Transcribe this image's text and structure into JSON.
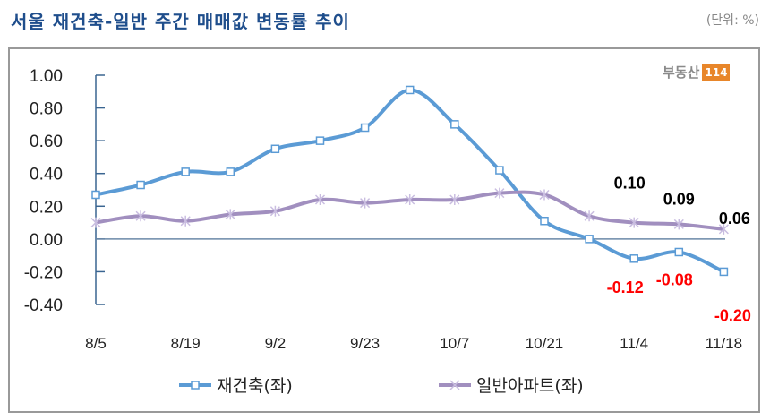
{
  "title": "서울 재건축-일반 주간 매매값 변동률 추이",
  "unit": "(단위: %)",
  "logo": {
    "text": "부동산",
    "badge": "114"
  },
  "chart_data": {
    "type": "line",
    "title": "서울 재건축-일반 주간 매매값 변동률 추이",
    "ylabel": "%",
    "ylim": [
      -0.4,
      1.0
    ],
    "yticks": [
      "1.00",
      "0.80",
      "0.60",
      "0.40",
      "0.20",
      "0.00",
      "-0.20",
      "-0.40"
    ],
    "ytick_values": [
      1.0,
      0.8,
      0.6,
      0.4,
      0.2,
      0.0,
      -0.2,
      -0.4
    ],
    "x_tick_labels": [
      "8/5",
      "8/19",
      "9/2",
      "9/23",
      "10/7",
      "10/21",
      "11/4",
      "11/18"
    ],
    "x_tick_indices": [
      0,
      2,
      4,
      6,
      8,
      10,
      12,
      14
    ],
    "point_count": 15,
    "legend_position": "bottom",
    "series": [
      {
        "name": "재건축(좌)",
        "color": "#5b9bd5",
        "marker": "square",
        "values": [
          0.27,
          0.33,
          0.41,
          0.41,
          0.55,
          0.6,
          0.68,
          0.91,
          0.7,
          0.42,
          0.11,
          0.0,
          -0.12,
          -0.08,
          -0.2
        ]
      },
      {
        "name": "일반아파트(좌)",
        "color": "#a18fbf",
        "marker": "star",
        "values": [
          0.1,
          0.14,
          0.11,
          0.15,
          0.17,
          0.24,
          0.22,
          0.24,
          0.24,
          0.28,
          0.27,
          0.14,
          0.1,
          0.09,
          0.06
        ]
      }
    ],
    "annotations": [
      {
        "text": "0.10",
        "series": 1,
        "index": 12,
        "color": "#000000"
      },
      {
        "text": "0.09",
        "series": 1,
        "index": 13,
        "color": "#000000"
      },
      {
        "text": "0.06",
        "series": 1,
        "index": 14,
        "color": "#000000"
      },
      {
        "text": "-0.12",
        "series": 0,
        "index": 12,
        "color": "#ff0000"
      },
      {
        "text": "-0.08",
        "series": 0,
        "index": 13,
        "color": "#ff0000"
      },
      {
        "text": "-0.20",
        "series": 0,
        "index": 14,
        "color": "#ff0000"
      }
    ]
  }
}
